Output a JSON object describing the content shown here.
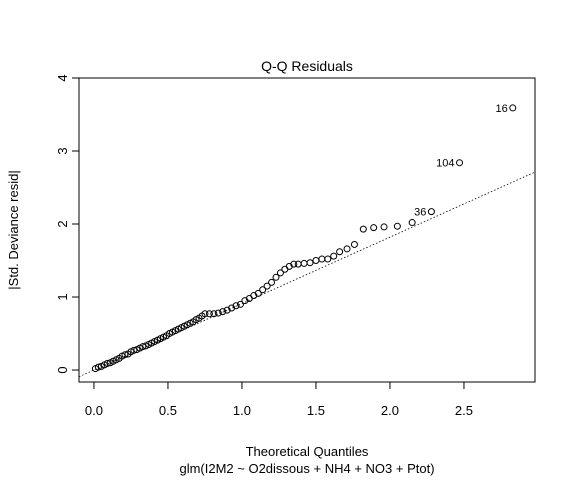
{
  "chart_data": {
    "type": "scatter",
    "title": "Q-Q Residuals",
    "x_label": "Theoretical Quantiles",
    "subtitle": "glm(I2M2 ~ O2dissous + NH4 + NO3 + Ptot)",
    "y_label": "|Std. Deviance resid|",
    "x": [
      0.01,
      0.03,
      0.05,
      0.07,
      0.09,
      0.11,
      0.13,
      0.15,
      0.17,
      0.19,
      0.21,
      0.23,
      0.25,
      0.27,
      0.29,
      0.31,
      0.33,
      0.35,
      0.37,
      0.39,
      0.41,
      0.43,
      0.45,
      0.47,
      0.49,
      0.51,
      0.53,
      0.55,
      0.57,
      0.59,
      0.61,
      0.63,
      0.65,
      0.67,
      0.69,
      0.71,
      0.73,
      0.75,
      0.78,
      0.81,
      0.84,
      0.87,
      0.9,
      0.93,
      0.96,
      0.99,
      1.02,
      1.05,
      1.08,
      1.11,
      1.14,
      1.17,
      1.2,
      1.23,
      1.26,
      1.29,
      1.32,
      1.35,
      1.38,
      1.42,
      1.46,
      1.5,
      1.54,
      1.58,
      1.62,
      1.66,
      1.71,
      1.76,
      1.82,
      1.89,
      1.96,
      2.05,
      2.15,
      2.28,
      2.47,
      2.83
    ],
    "values": [
      0.02,
      0.04,
      0.05,
      0.07,
      0.09,
      0.1,
      0.12,
      0.14,
      0.16,
      0.19,
      0.21,
      0.22,
      0.25,
      0.27,
      0.28,
      0.3,
      0.32,
      0.33,
      0.35,
      0.37,
      0.39,
      0.41,
      0.43,
      0.45,
      0.47,
      0.5,
      0.52,
      0.54,
      0.56,
      0.58,
      0.6,
      0.62,
      0.64,
      0.66,
      0.69,
      0.71,
      0.74,
      0.77,
      0.77,
      0.77,
      0.78,
      0.8,
      0.82,
      0.85,
      0.88,
      0.9,
      0.95,
      0.98,
      1.02,
      1.05,
      1.1,
      1.15,
      1.2,
      1.27,
      1.33,
      1.38,
      1.42,
      1.45,
      1.45,
      1.46,
      1.47,
      1.5,
      1.52,
      1.52,
      1.56,
      1.62,
      1.66,
      1.72,
      1.93,
      1.95,
      1.96,
      1.97,
      2.02,
      2.17,
      2.84,
      3.59
    ],
    "point_labels": [
      null,
      null,
      null,
      null,
      null,
      null,
      null,
      null,
      null,
      null,
      null,
      null,
      null,
      null,
      null,
      null,
      null,
      null,
      null,
      null,
      null,
      null,
      null,
      null,
      null,
      null,
      null,
      null,
      null,
      null,
      null,
      null,
      null,
      null,
      null,
      null,
      null,
      null,
      null,
      null,
      null,
      null,
      null,
      null,
      null,
      null,
      null,
      null,
      null,
      null,
      null,
      null,
      null,
      null,
      null,
      null,
      null,
      null,
      null,
      null,
      null,
      null,
      null,
      null,
      null,
      null,
      null,
      null,
      null,
      null,
      null,
      null,
      null,
      "36",
      "104",
      "16"
    ],
    "color": "#000000",
    "reference_line": {
      "intercept": 0,
      "slope": 0.91
    },
    "xlim": [
      -0.101,
      2.98
    ],
    "ylim": [
      -0.164,
      4.0
    ],
    "xticks": [
      {
        "value": 0,
        "label": "0.0"
      },
      0.5,
      {
        "value": 1,
        "label": "1.0"
      },
      1.5,
      {
        "value": 2,
        "label": "2.0"
      },
      2.5
    ],
    "yticks": [
      0,
      1,
      2,
      3,
      4
    ]
  }
}
